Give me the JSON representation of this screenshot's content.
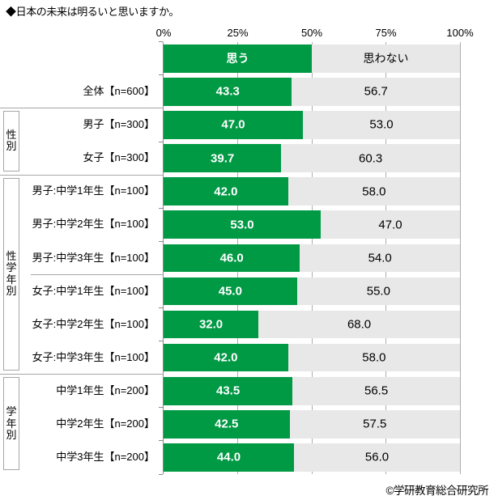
{
  "title": "◆日本の未来は明るいと思いますか。",
  "footer": "©学研教育総合研究所",
  "colors": {
    "yes_bar": "#009944",
    "no_bar": "#e8e8e8",
    "axis": "#8a8a8a",
    "gridline": "#aeaeae",
    "separator": "#a6a6a6"
  },
  "chart_data": {
    "type": "bar",
    "stacked": true,
    "orientation": "horizontal",
    "title": "◆日本の未来は明るいと思いますか。",
    "unit": "%",
    "xlim": [
      0,
      100
    ],
    "x_ticks": [
      "0%",
      "25%",
      "50%",
      "75%",
      "100%"
    ],
    "grid": "vertical",
    "legend_position": "header-row",
    "legend": [
      {
        "label": "思う",
        "color": "#009944"
      },
      {
        "label": "思わない",
        "color": "#e8e8e8"
      }
    ],
    "rows": [
      {
        "label": "全体【n=600】",
        "yes": 43.3,
        "no": 56.7
      },
      {
        "label": "男子【n=300】",
        "yes": 47.0,
        "no": 53.0
      },
      {
        "label": "女子【n=300】",
        "yes": 39.7,
        "no": 60.3
      },
      {
        "label": "男子:中学1年生【n=100】",
        "yes": 42.0,
        "no": 58.0
      },
      {
        "label": "男子:中学2年生【n=100】",
        "yes": 53.0,
        "no": 47.0
      },
      {
        "label": "男子:中学3年生【n=100】",
        "yes": 46.0,
        "no": 54.0
      },
      {
        "label": "女子:中学1年生【n=100】",
        "yes": 45.0,
        "no": 55.0
      },
      {
        "label": "女子:中学2年生【n=100】",
        "yes": 32.0,
        "no": 68.0
      },
      {
        "label": "女子:中学3年生【n=100】",
        "yes": 42.0,
        "no": 58.0
      },
      {
        "label": "中学1年生【n=200】",
        "yes": 43.5,
        "no": 56.5
      },
      {
        "label": "中学2年生【n=200】",
        "yes": 42.5,
        "no": 57.5
      },
      {
        "label": "中学3年生【n=200】",
        "yes": 44.0,
        "no": 56.0
      }
    ],
    "groups": [
      {
        "label": "性別",
        "first_row": 1,
        "last_row": 2
      },
      {
        "label": "性学年別",
        "first_row": 3,
        "last_row": 8,
        "subdivider_after": 5
      },
      {
        "label": "学年別",
        "first_row": 9,
        "last_row": 11
      }
    ]
  }
}
